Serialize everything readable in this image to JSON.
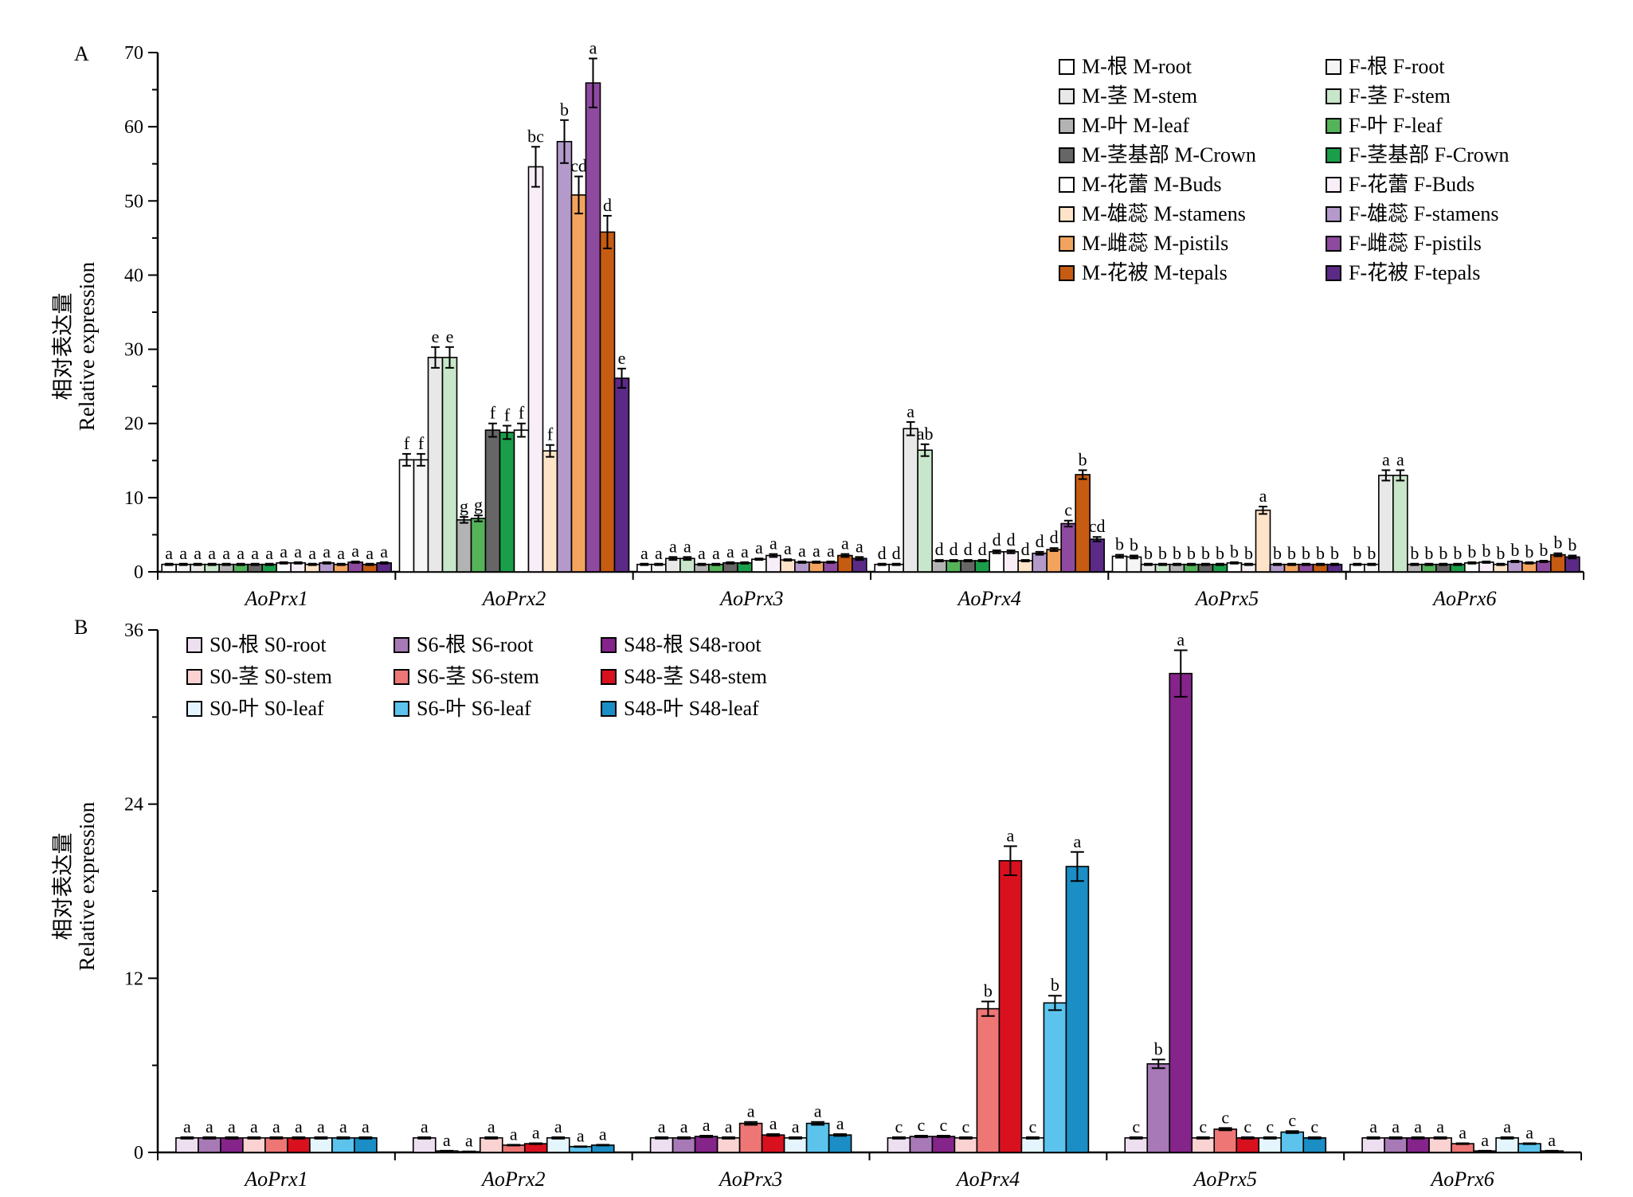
{
  "chart_data": [
    {
      "type": "bar",
      "panel": "A",
      "ylabel_cn": "相对表达量",
      "ylabel": "Relative expression",
      "ylim": [
        0,
        70
      ],
      "yticks": [
        0,
        10,
        20,
        30,
        40,
        50,
        60,
        70
      ],
      "categories": [
        "AoPrx1",
        "AoPrx2",
        "AoPrx3",
        "AoPrx4",
        "AoPrx5",
        "AoPrx6"
      ],
      "legend_columns": 2,
      "legend_position": "top-right",
      "series": [
        {
          "name": "M-根 M-root",
          "color": "#ffffff",
          "values": [
            1.0,
            15.1,
            1.0,
            1.0,
            2.1,
            1.0
          ],
          "errors": [
            0.1,
            0.8,
            0.1,
            0.1,
            0.2,
            0.1
          ],
          "sig": [
            "a",
            "f",
            "a",
            "d",
            "b",
            "b"
          ]
        },
        {
          "name": "F-根 F-root",
          "color": "#f5f5f5",
          "values": [
            1.0,
            15.1,
            1.0,
            1.0,
            2.0,
            1.0
          ],
          "errors": [
            0.1,
            0.8,
            0.1,
            0.1,
            0.2,
            0.1
          ],
          "sig": [
            "a",
            "f",
            "a",
            "d",
            "b",
            "b"
          ]
        },
        {
          "name": "M-茎 M-stem",
          "color": "#e8e8e8",
          "values": [
            1.0,
            28.9,
            1.8,
            19.3,
            1.0,
            13.0
          ],
          "errors": [
            0.1,
            1.4,
            0.2,
            0.9,
            0.1,
            0.7
          ],
          "sig": [
            "a",
            "e",
            "a",
            "a",
            "b",
            "a"
          ]
        },
        {
          "name": "F-茎 F-stem",
          "color": "#c8e6c9",
          "values": [
            1.0,
            28.9,
            1.8,
            16.4,
            1.0,
            13.0
          ],
          "errors": [
            0.1,
            1.4,
            0.2,
            0.8,
            0.1,
            0.7
          ],
          "sig": [
            "a",
            "e",
            "a",
            "ab",
            "b",
            "a"
          ]
        },
        {
          "name": "M-叶 M-leaf",
          "color": "#b3b3b3",
          "values": [
            1.0,
            7.0,
            1.0,
            1.5,
            1.0,
            1.0
          ],
          "errors": [
            0.1,
            0.4,
            0.1,
            0.1,
            0.1,
            0.1
          ],
          "sig": [
            "a",
            "g",
            "a",
            "d",
            "b",
            "b"
          ]
        },
        {
          "name": "F-叶 F-leaf",
          "color": "#55b35a",
          "values": [
            1.0,
            7.2,
            1.0,
            1.5,
            1.0,
            1.0
          ],
          "errors": [
            0.1,
            0.4,
            0.1,
            0.1,
            0.1,
            0.1
          ],
          "sig": [
            "a",
            "g",
            "a",
            "d",
            "b",
            "b"
          ]
        },
        {
          "name": "M-茎基部 M-Crown",
          "color": "#666666",
          "values": [
            1.0,
            19.1,
            1.2,
            1.5,
            1.0,
            1.0
          ],
          "errors": [
            0.1,
            0.9,
            0.1,
            0.1,
            0.1,
            0.1
          ],
          "sig": [
            "a",
            "f",
            "a",
            "d",
            "b",
            "b"
          ]
        },
        {
          "name": "F-茎基部 F-Crown",
          "color": "#1a9e4a",
          "values": [
            1.0,
            18.8,
            1.2,
            1.5,
            1.0,
            1.0
          ],
          "errors": [
            0.1,
            0.9,
            0.1,
            0.1,
            0.1,
            0.1
          ],
          "sig": [
            "a",
            "f",
            "a",
            "d",
            "b",
            "b"
          ]
        },
        {
          "name": "M-花蕾 M-Buds",
          "color": "#ffffff",
          "values": [
            1.2,
            19.1,
            1.7,
            2.7,
            1.2,
            1.2
          ],
          "errors": [
            0.1,
            0.9,
            0.1,
            0.2,
            0.1,
            0.1
          ],
          "sig": [
            "a",
            "f",
            "a",
            "d",
            "b",
            "b"
          ]
        },
        {
          "name": "F-花蕾 F-Buds",
          "color": "#f8eef8",
          "values": [
            1.2,
            54.6,
            2.2,
            2.7,
            1.0,
            1.3
          ],
          "errors": [
            0.1,
            2.7,
            0.2,
            0.2,
            0.1,
            0.1
          ],
          "sig": [
            "a",
            "bc",
            "a",
            "d",
            "b",
            "b"
          ]
        },
        {
          "name": "M-雄蕊 M-stamens",
          "color": "#fde3c8",
          "values": [
            1.0,
            16.3,
            1.6,
            1.5,
            8.3,
            1.0
          ],
          "errors": [
            0.1,
            0.8,
            0.1,
            0.1,
            0.5,
            0.1
          ],
          "sig": [
            "a",
            "f",
            "a",
            "d",
            "a",
            "b"
          ]
        },
        {
          "name": "F-雄蕊 F-stamens",
          "color": "#b49acb",
          "values": [
            1.2,
            58.0,
            1.3,
            2.5,
            1.0,
            1.4
          ],
          "errors": [
            0.1,
            2.9,
            0.1,
            0.2,
            0.1,
            0.1
          ],
          "sig": [
            "a",
            "b",
            "a",
            "d",
            "b",
            "b"
          ]
        },
        {
          "name": "M-雌蕊 M-pistils",
          "color": "#f2a45f",
          "values": [
            1.0,
            50.8,
            1.3,
            3.0,
            1.0,
            1.2
          ],
          "errors": [
            0.1,
            2.5,
            0.1,
            0.2,
            0.1,
            0.1
          ],
          "sig": [
            "a",
            "cd",
            "a",
            "d",
            "b",
            "b"
          ]
        },
        {
          "name": "F-雌蕊 F-pistils",
          "color": "#8e4a9f",
          "values": [
            1.3,
            65.9,
            1.3,
            6.5,
            1.0,
            1.4
          ],
          "errors": [
            0.1,
            3.3,
            0.1,
            0.4,
            0.1,
            0.1
          ],
          "sig": [
            "a",
            "a",
            "a",
            "c",
            "b",
            "b"
          ]
        },
        {
          "name": "M-花被 M-tepals",
          "color": "#c65b12",
          "values": [
            1.0,
            45.8,
            2.2,
            13.1,
            1.0,
            2.3
          ],
          "errors": [
            0.1,
            2.2,
            0.2,
            0.6,
            0.1,
            0.2
          ],
          "sig": [
            "a",
            "d",
            "a",
            "b",
            "b",
            "b"
          ]
        },
        {
          "name": "F-花被 F-tepals",
          "color": "#5b2a86",
          "values": [
            1.2,
            26.1,
            1.8,
            4.4,
            1.0,
            2.0
          ],
          "errors": [
            0.1,
            1.3,
            0.2,
            0.3,
            0.1,
            0.2
          ],
          "sig": [
            "a",
            "e",
            "a",
            "cd",
            "b",
            "b"
          ]
        }
      ]
    },
    {
      "type": "bar",
      "panel": "B",
      "ylabel_cn": "相对表达量",
      "ylabel": "Relative expression",
      "ylim": [
        0,
        36
      ],
      "yticks": [
        0,
        12,
        24,
        36
      ],
      "categories": [
        "AoPrx1",
        "AoPrx2",
        "AoPrx3",
        "AoPrx4",
        "AoPrx5",
        "AoPrx6"
      ],
      "legend_columns": 3,
      "legend_position": "top-left",
      "series": [
        {
          "name": "S0-根 S0-root",
          "color": "#eddff0",
          "values": [
            1.0,
            1.0,
            1.0,
            1.0,
            1.0,
            1.0
          ],
          "errors": [
            0.05,
            0.05,
            0.05,
            0.05,
            0.05,
            0.05
          ],
          "sig": [
            "a",
            "a",
            "a",
            "c",
            "c",
            "a"
          ]
        },
        {
          "name": "S6-根 S6-root",
          "color": "#a779b6",
          "values": [
            1.0,
            0.1,
            1.0,
            1.1,
            6.1,
            1.0
          ],
          "errors": [
            0.05,
            0.02,
            0.05,
            0.05,
            0.3,
            0.05
          ],
          "sig": [
            "a",
            "a",
            "a",
            "c",
            "b",
            "a"
          ]
        },
        {
          "name": "S48-根 S48-root",
          "color": "#85248a",
          "values": [
            1.0,
            0.05,
            1.1,
            1.1,
            33.0,
            1.0
          ],
          "errors": [
            0.05,
            0.02,
            0.05,
            0.05,
            1.6,
            0.05
          ],
          "sig": [
            "a",
            "a",
            "a",
            "c",
            "a",
            "a"
          ]
        },
        {
          "name": "S0-茎 S0-stem",
          "color": "#fbd2d2",
          "values": [
            1.0,
            1.0,
            1.0,
            1.0,
            1.0,
            1.0
          ],
          "errors": [
            0.05,
            0.05,
            0.05,
            0.05,
            0.05,
            0.05
          ],
          "sig": [
            "a",
            "a",
            "a",
            "c",
            "c",
            "a"
          ]
        },
        {
          "name": "S6-茎 S6-stem",
          "color": "#ee7776",
          "values": [
            1.0,
            0.5,
            2.0,
            9.9,
            1.6,
            0.6
          ],
          "errors": [
            0.05,
            0.03,
            0.1,
            0.5,
            0.08,
            0.03
          ],
          "sig": [
            "a",
            "a",
            "a",
            "b",
            "c",
            "a"
          ]
        },
        {
          "name": "S48-茎 S48-stem",
          "color": "#d9101e",
          "values": [
            1.0,
            0.6,
            1.2,
            20.1,
            1.0,
            0.1
          ],
          "errors": [
            0.05,
            0.03,
            0.06,
            1.0,
            0.05,
            0.02
          ],
          "sig": [
            "a",
            "a",
            "a",
            "a",
            "c",
            "a"
          ]
        },
        {
          "name": "S0-叶 S0-leaf",
          "color": "#e4f5fd",
          "values": [
            1.0,
            1.0,
            1.0,
            1.0,
            1.0,
            1.0
          ],
          "errors": [
            0.05,
            0.05,
            0.05,
            0.05,
            0.05,
            0.05
          ],
          "sig": [
            "a",
            "a",
            "a",
            "c",
            "c",
            "a"
          ]
        },
        {
          "name": "S6-叶 S6-leaf",
          "color": "#5cc3ed",
          "values": [
            1.0,
            0.4,
            2.0,
            10.3,
            1.4,
            0.6
          ],
          "errors": [
            0.05,
            0.02,
            0.1,
            0.5,
            0.07,
            0.03
          ],
          "sig": [
            "a",
            "a",
            "a",
            "b",
            "c",
            "a"
          ]
        },
        {
          "name": "S48-叶 S48-leaf",
          "color": "#1a8ec5",
          "values": [
            1.0,
            0.5,
            1.2,
            19.7,
            1.0,
            0.1
          ],
          "errors": [
            0.05,
            0.03,
            0.06,
            1.0,
            0.05,
            0.02
          ],
          "sig": [
            "a",
            "a",
            "a",
            "a",
            "c",
            "a"
          ]
        }
      ]
    }
  ]
}
